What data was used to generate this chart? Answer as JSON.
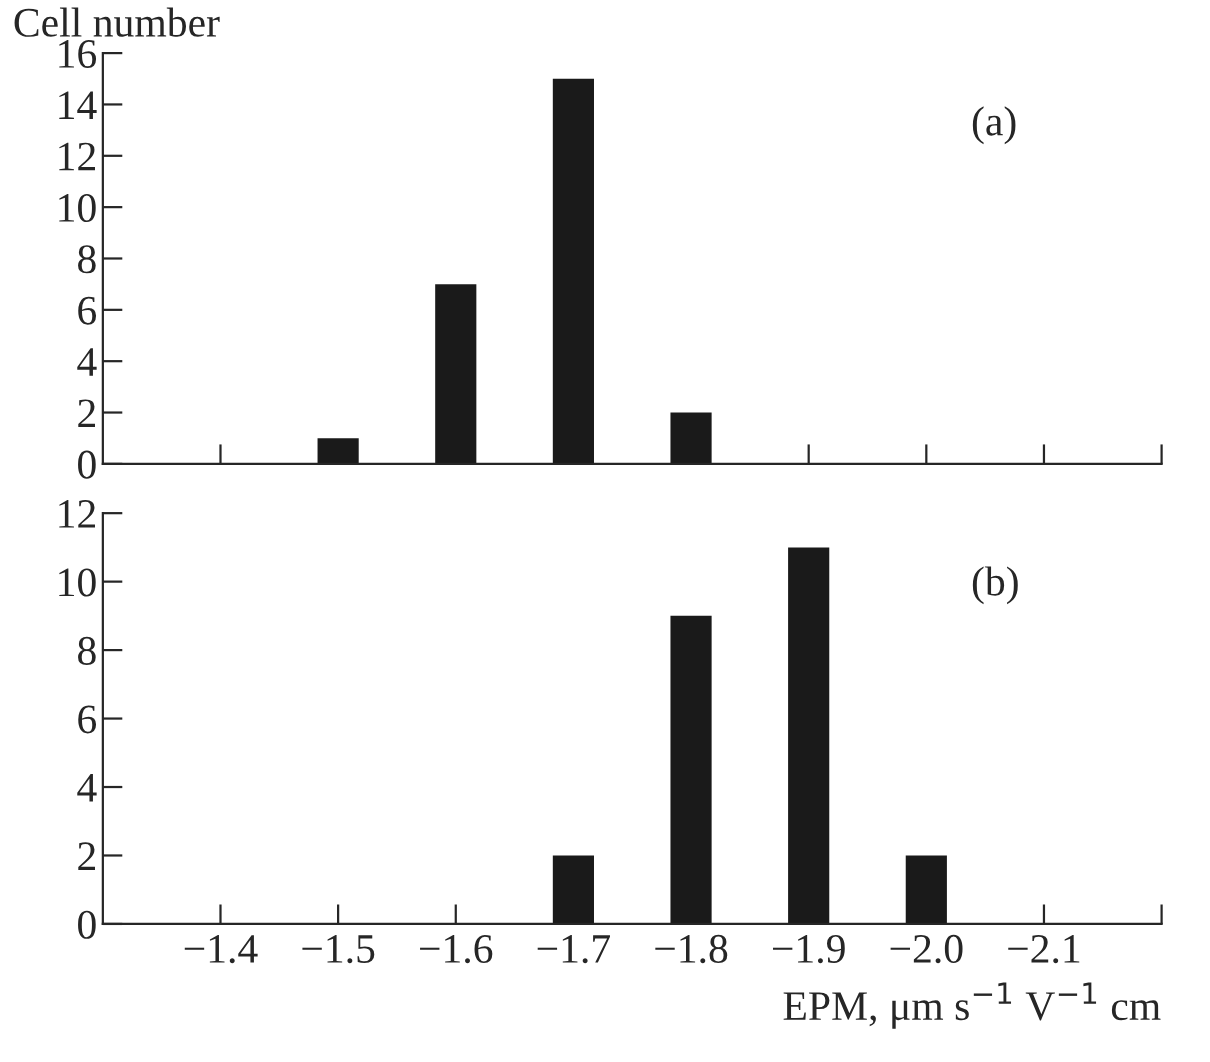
{
  "chart_data": [
    {
      "type": "bar",
      "ylabel": "Cell number",
      "annotations": [
        "(a)"
      ],
      "x": [
        -1.5,
        -1.6,
        -1.7,
        -1.8
      ],
      "values": [
        1,
        7,
        15,
        2
      ],
      "color": "#1a1a1a",
      "xlim": [
        -1.3,
        -2.2
      ],
      "xticks": [
        {
          "value": -1.4,
          "label": null
        },
        {
          "value": -1.5,
          "label": null
        },
        {
          "value": -1.6,
          "label": null
        },
        {
          "value": -1.7,
          "label": null
        },
        {
          "value": -1.8,
          "label": null
        },
        {
          "value": -1.9,
          "label": null
        },
        {
          "value": -2.0,
          "label": null
        },
        {
          "value": -2.1,
          "label": null
        },
        {
          "value": -2.2,
          "label": null
        }
      ],
      "ylim": [
        0,
        16
      ],
      "yticks": [
        0,
        2,
        4,
        6,
        8,
        10,
        12,
        14,
        16
      ],
      "tick_labels": "y",
      "grid": false,
      "legend": false
    },
    {
      "type": "bar",
      "xlabel": "EPM, μm s$^{−1}$ V$^{−1}$ cm",
      "annotations": [
        "(b)"
      ],
      "x": [
        -1.7,
        -1.8,
        -1.9,
        -2.0
      ],
      "values": [
        2,
        9,
        11,
        2
      ],
      "color": "#1a1a1a",
      "xlim": [
        -1.3,
        -2.2
      ],
      "xticks": [
        {
          "value": -1.4,
          "label": "−1.4"
        },
        {
          "value": -1.5,
          "label": "−1.5"
        },
        {
          "value": -1.6,
          "label": "−1.6"
        },
        {
          "value": -1.7,
          "label": "−1.7"
        },
        {
          "value": -1.8,
          "label": "−1.8"
        },
        {
          "value": -1.9,
          "label": "−1.9"
        },
        {
          "value": -2.0,
          "label": "−2.0"
        },
        {
          "value": -2.1,
          "label": "−2.1"
        },
        {
          "value": -2.2,
          "label": null
        }
      ],
      "ylim": [
        0,
        12
      ],
      "yticks": [
        0,
        2,
        4,
        6,
        8,
        10,
        12
      ],
      "grid": false,
      "legend": false
    }
  ]
}
